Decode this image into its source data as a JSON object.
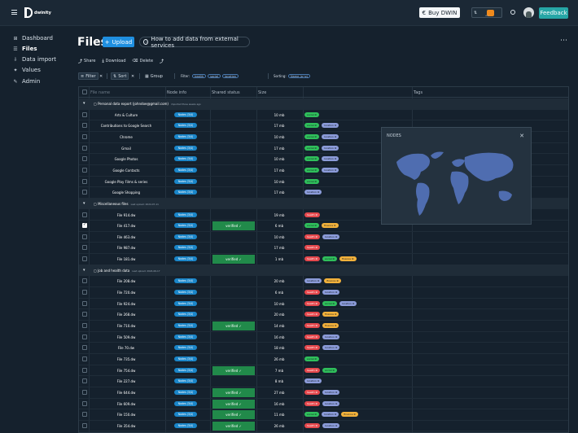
{
  "header": {
    "logo_text": "dwinity",
    "buy_label": "Buy DWIN",
    "hub_text": "HUB",
    "feedback_label": "Feedback"
  },
  "sidebar": {
    "items": [
      {
        "label": "Dashboard",
        "icon": "dashboard-icon",
        "active": false
      },
      {
        "label": "Files",
        "icon": "files-icon",
        "active": true
      },
      {
        "label": "Data import",
        "icon": "import-icon",
        "active": false
      },
      {
        "label": "Values",
        "icon": "values-icon",
        "active": false
      },
      {
        "label": "Admin",
        "icon": "admin-icon",
        "active": false
      }
    ]
  },
  "page": {
    "title": "Files",
    "upload_label": "Upload",
    "howto_label": "How to add data from external services"
  },
  "actions": {
    "share": "Share",
    "download": "Download",
    "delete": "Delete"
  },
  "filterbar": {
    "filter_label": "Filter",
    "sort_label": "Sort",
    "group_label": "Group",
    "filter_prefix": "Filter:",
    "filter_pills": [
      "health",
      "social",
      "location"
    ],
    "sorting_prefix": "Sorting:",
    "sort_pill": "Name (a→z)"
  },
  "table": {
    "columns": {
      "name_placeholder": "File name",
      "node": "Node info",
      "shared": "Shared status",
      "size": "Size",
      "tags": "Tags"
    },
    "node_badge": "Nodes (3/4)",
    "verified_label": "verified",
    "rows": [
      {
        "type": "group",
        "name": "Personal data export (johndoe@gmail.com)",
        "meta": "imported three weeks ago"
      },
      {
        "type": "file",
        "name": "Arts & Culture",
        "size": "10 mb",
        "verified": false,
        "checked": false,
        "tags": [
          "social"
        ]
      },
      {
        "type": "file",
        "name": "Contributions to Google Search",
        "size": "17 mb",
        "verified": false,
        "checked": false,
        "tags": [
          "social",
          "location"
        ]
      },
      {
        "type": "file",
        "name": "Chrome",
        "size": "10 mb",
        "verified": false,
        "checked": false,
        "tags": [
          "social",
          "location"
        ]
      },
      {
        "type": "file",
        "name": "Gmail",
        "size": "17 mb",
        "verified": false,
        "checked": false,
        "tags": [
          "social",
          "location"
        ]
      },
      {
        "type": "file",
        "name": "Google Photos",
        "size": "10 mb",
        "verified": false,
        "checked": false,
        "tags": [
          "social",
          "location"
        ]
      },
      {
        "type": "file",
        "name": "Google Contacts",
        "size": "17 mb",
        "verified": false,
        "checked": false,
        "tags": [
          "social",
          "location"
        ]
      },
      {
        "type": "file",
        "name": "Google Play Films & series",
        "size": "10 mb",
        "verified": false,
        "checked": false,
        "tags": [
          "social"
        ]
      },
      {
        "type": "file",
        "name": "Google Shopping",
        "size": "17 mb",
        "verified": false,
        "checked": false,
        "tags": [
          "location"
        ]
      },
      {
        "type": "group",
        "name": "Miscellaneous files",
        "meta": "Last upload: 2024-07-11"
      },
      {
        "type": "file",
        "name": "File 914.dw",
        "size": "19 mb",
        "verified": false,
        "checked": false,
        "tags": [
          "health"
        ]
      },
      {
        "type": "file",
        "name": "File 417.dw",
        "size": "6 mb",
        "verified": true,
        "checked": true,
        "tags": [
          "social",
          "finance"
        ]
      },
      {
        "type": "file",
        "name": "File 463.dw",
        "size": "10 mb",
        "verified": false,
        "checked": false,
        "tags": [
          "health",
          "location"
        ]
      },
      {
        "type": "file",
        "name": "File 987.dw",
        "size": "17 mb",
        "verified": false,
        "checked": false,
        "tags": [
          "health"
        ]
      },
      {
        "type": "file",
        "name": "File 181.dw",
        "size": "1 mb",
        "verified": true,
        "checked": false,
        "tags": [
          "health",
          "social",
          "finance"
        ]
      },
      {
        "type": "group",
        "name": "Job and health data",
        "meta": "Last upload: 2024-06-17"
      },
      {
        "type": "file",
        "name": "File 208.dw",
        "size": "20 mb",
        "verified": false,
        "checked": false,
        "tags": [
          "location",
          "finance"
        ]
      },
      {
        "type": "file",
        "name": "File 720.dw",
        "size": "6 mb",
        "verified": false,
        "checked": false,
        "tags": [
          "health",
          "location"
        ]
      },
      {
        "type": "file",
        "name": "File 924.dw",
        "size": "10 mb",
        "verified": false,
        "checked": false,
        "tags": [
          "health",
          "social",
          "location"
        ]
      },
      {
        "type": "file",
        "name": "File 268.dw",
        "size": "20 mb",
        "verified": false,
        "checked": false,
        "tags": [
          "health",
          "finance"
        ]
      },
      {
        "type": "file",
        "name": "File 710.dw",
        "size": "14 mb",
        "verified": true,
        "checked": false,
        "tags": [
          "health",
          "finance"
        ]
      },
      {
        "type": "file",
        "name": "File 509.dw",
        "size": "16 mb",
        "verified": false,
        "checked": false,
        "tags": [
          "health",
          "location"
        ]
      },
      {
        "type": "file",
        "name": "File 70.dw",
        "size": "18 mb",
        "verified": false,
        "checked": false,
        "tags": [
          "health",
          "location"
        ]
      },
      {
        "type": "file",
        "name": "File 735.dw",
        "size": "26 mb",
        "verified": false,
        "checked": false,
        "tags": [
          "social"
        ]
      },
      {
        "type": "file",
        "name": "File 754.dw",
        "size": "7 mb",
        "verified": true,
        "checked": false,
        "tags": [
          "health",
          "social"
        ]
      },
      {
        "type": "file",
        "name": "File 227.dw",
        "size": "8 mb",
        "verified": false,
        "checked": false,
        "tags": [
          "location"
        ]
      },
      {
        "type": "file",
        "name": "File 644.dw",
        "size": "27 mb",
        "verified": true,
        "checked": false,
        "tags": [
          "health",
          "location"
        ]
      },
      {
        "type": "file",
        "name": "File 609.dw",
        "size": "16 mb",
        "verified": true,
        "checked": false,
        "tags": [
          "health",
          "location"
        ]
      },
      {
        "type": "file",
        "name": "File 150.dw",
        "size": "11 mb",
        "verified": true,
        "checked": false,
        "tags": [
          "social",
          "location",
          "finance"
        ]
      },
      {
        "type": "file",
        "name": "File 354.dw",
        "size": "26 mb",
        "verified": true,
        "checked": false,
        "tags": [
          "health",
          "location"
        ]
      }
    ]
  },
  "nodes_panel": {
    "title": "NODES",
    "close_icon": "close-icon"
  },
  "colors": {
    "accent": "#1f8fe0",
    "feedback": "#26a6a6",
    "verified": "#218a4a",
    "social": "#2fbf5b",
    "location": "#8b9bd9",
    "health": "#e5484d",
    "finance": "#f2b13b"
  }
}
